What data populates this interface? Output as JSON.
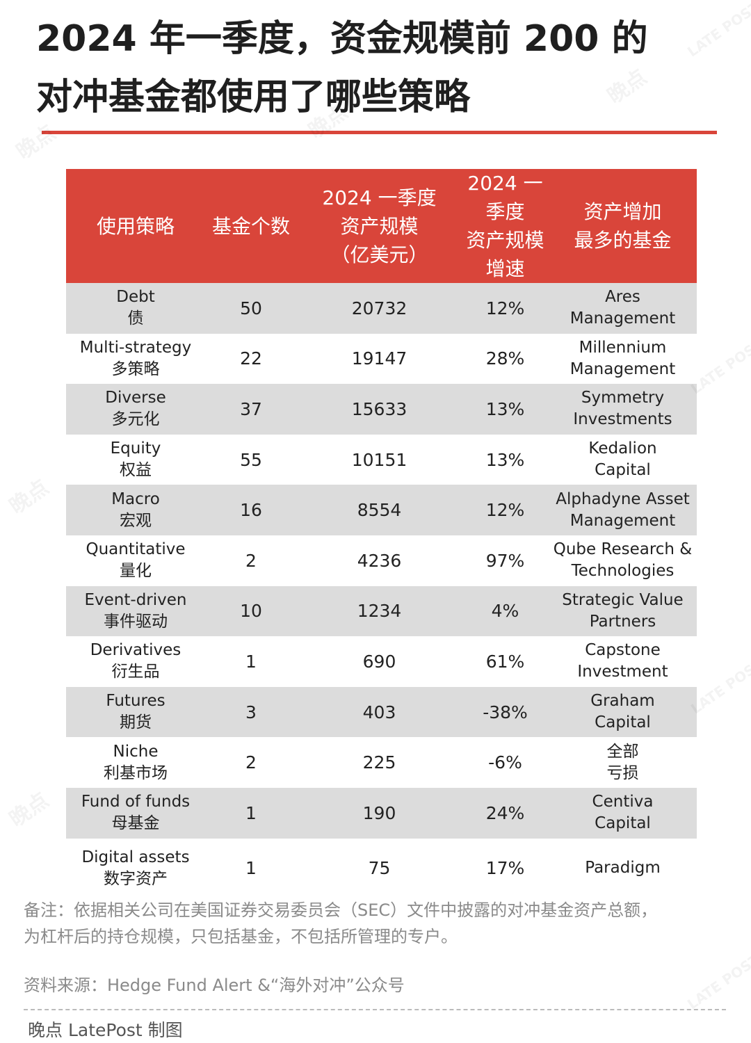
{
  "title": {
    "line1": "2024 年一季度，资金规模前 200 的",
    "line2": "对冲基金都使用了哪些策略"
  },
  "chart_data": {
    "type": "table",
    "title": "2024 年一季度，资金规模前 200 的对冲基金都使用了哪些策略",
    "columns": [
      {
        "lines": [
          "使用策略"
        ]
      },
      {
        "lines": [
          "基金个数"
        ]
      },
      {
        "lines": [
          "2024 一季度",
          "资产规模",
          "（亿美元）"
        ]
      },
      {
        "lines": [
          "2024 一季度",
          "资产规模",
          "增速"
        ]
      },
      {
        "lines": [
          "资产增加",
          "最多的基金"
        ]
      }
    ],
    "rows": [
      {
        "strategy_en": "Debt",
        "strategy_zh": "债",
        "count": 50,
        "aum": 20732,
        "growth": "12%",
        "fund_1": "Ares",
        "fund_2": "Management"
      },
      {
        "strategy_en": "Multi-strategy",
        "strategy_zh": "多策略",
        "count": 22,
        "aum": 19147,
        "growth": "28%",
        "fund_1": "Millennium",
        "fund_2": "Management"
      },
      {
        "strategy_en": "Diverse",
        "strategy_zh": "多元化",
        "count": 37,
        "aum": 15633,
        "growth": "13%",
        "fund_1": "Symmetry",
        "fund_2": "Investments"
      },
      {
        "strategy_en": "Equity",
        "strategy_zh": "权益",
        "count": 55,
        "aum": 10151,
        "growth": "13%",
        "fund_1": "Kedalion",
        "fund_2": "Capital"
      },
      {
        "strategy_en": "Macro",
        "strategy_zh": "宏观",
        "count": 16,
        "aum": 8554,
        "growth": "12%",
        "fund_1": "Alphadyne Asset",
        "fund_2": "Management"
      },
      {
        "strategy_en": "Quantitative",
        "strategy_zh": "量化",
        "count": 2,
        "aum": 4236,
        "growth": "97%",
        "fund_1": "Qube Research &",
        "fund_2": "Technologies"
      },
      {
        "strategy_en": "Event-driven",
        "strategy_zh": "事件驱动",
        "count": 10,
        "aum": 1234,
        "growth": "4%",
        "fund_1": "Strategic Value",
        "fund_2": "Partners"
      },
      {
        "strategy_en": "Derivatives",
        "strategy_zh": "衍生品",
        "count": 1,
        "aum": 690,
        "growth": "61%",
        "fund_1": "Capstone",
        "fund_2": "Investment"
      },
      {
        "strategy_en": "Futures",
        "strategy_zh": "期货",
        "count": 3,
        "aum": 403,
        "growth": "-38%",
        "fund_1": "Graham",
        "fund_2": "Capital"
      },
      {
        "strategy_en": "Niche",
        "strategy_zh": "利基市场",
        "count": 2,
        "aum": 225,
        "growth": "-6%",
        "fund_1": "全部",
        "fund_2": "亏损"
      },
      {
        "strategy_en": "Fund of funds",
        "strategy_zh": "母基金",
        "count": 1,
        "aum": 190,
        "growth": "24%",
        "fund_1": "Centiva",
        "fund_2": "Capital"
      },
      {
        "strategy_en": "Digital assets",
        "strategy_zh": "数字资产",
        "count": 1,
        "aum": 75,
        "growth": "17%",
        "fund_1": "Paradigm",
        "fund_2": ""
      }
    ]
  },
  "note": {
    "line1": "备注：依据相关公司在美国证券交易委员会（SEC）文件中披露的对冲基金资产总额，",
    "line2": "为杠杆后的持仓规模，只包括基金，不包括所管理的专户。"
  },
  "source": "资料来源：Hedge Fund Alert &“海外对冲”公众号",
  "credit": "晚点 LatePost 制图",
  "watermark": {
    "zh": "晚点",
    "en": "LATE POST"
  },
  "colors": {
    "accent": "#d9453a",
    "stripe": "#dcdcdc",
    "muted": "#8a8a8a"
  }
}
